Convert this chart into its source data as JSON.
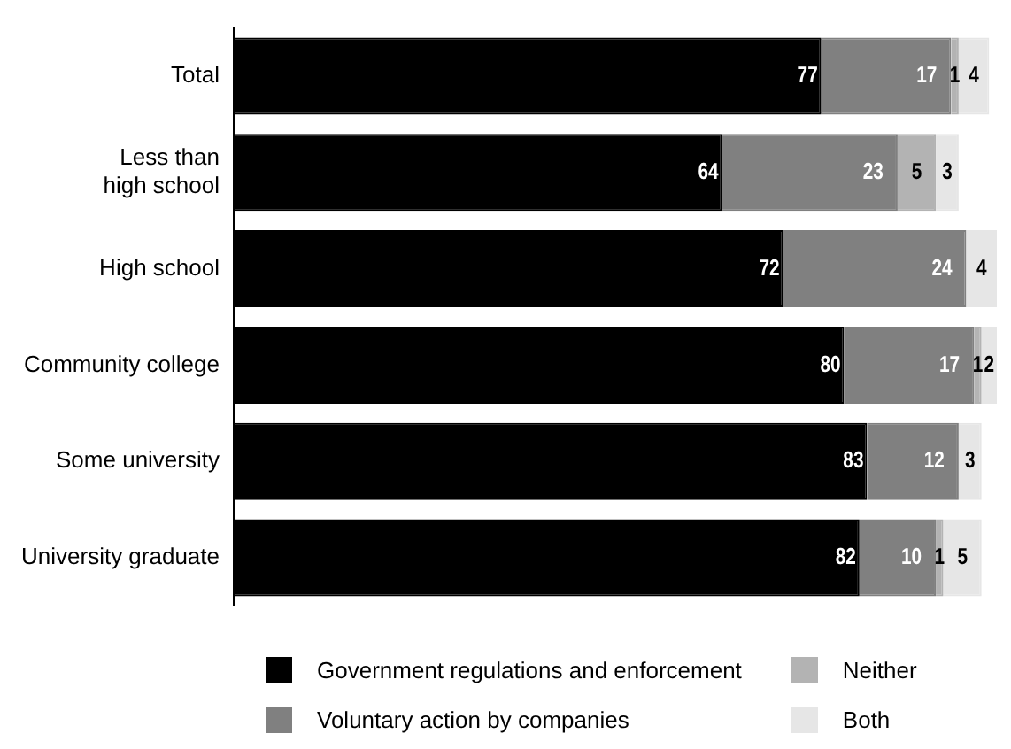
{
  "chart_data": {
    "type": "bar",
    "orientation": "horizontal",
    "stacked": true,
    "categories": [
      "Total",
      "Less than high school",
      "High school",
      "Community college",
      "Some university",
      "University graduate"
    ],
    "series": [
      {
        "name": "Government regulations and enforcement",
        "color": "#000000",
        "values": [
          77,
          64,
          72,
          80,
          83,
          82
        ]
      },
      {
        "name": "Voluntary action by companies",
        "color": "#808080",
        "values": [
          17,
          23,
          24,
          17,
          12,
          10
        ]
      },
      {
        "name": "Neither",
        "color": "#b3b3b3",
        "values": [
          1,
          5,
          null,
          1,
          null,
          1
        ]
      },
      {
        "name": "Both",
        "color": "#e6e6e6",
        "values": [
          4,
          3,
          4,
          2,
          3,
          5
        ]
      }
    ],
    "xlim": [
      0,
      100
    ],
    "data_labels": true,
    "legend": "bottom",
    "tick_labels": "y"
  }
}
